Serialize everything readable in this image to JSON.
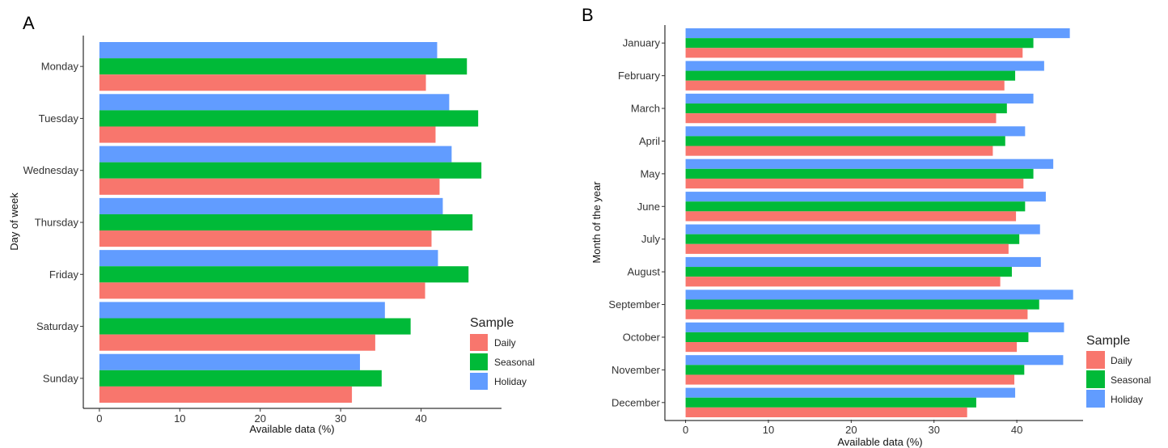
{
  "chart_data": [
    {
      "type": "bar",
      "orientation": "horizontal",
      "panel_label": "A",
      "categories": [
        "Monday",
        "Tuesday",
        "Wednesday",
        "Thursday",
        "Friday",
        "Saturday",
        "Sunday"
      ],
      "series": [
        {
          "name": "Daily",
          "color": "#F8766D",
          "values": [
            40.6,
            41.8,
            42.3,
            41.3,
            40.5,
            34.3,
            31.4
          ]
        },
        {
          "name": "Seasonal",
          "color": "#00BA38",
          "values": [
            45.7,
            47.1,
            47.5,
            46.4,
            45.9,
            38.7,
            35.1
          ]
        },
        {
          "name": "Holiday",
          "color": "#619CFF",
          "values": [
            42.0,
            43.5,
            43.8,
            42.7,
            42.1,
            35.5,
            32.4
          ]
        }
      ],
      "xlabel": "Available data (%)",
      "ylabel": "Day of week",
      "xlim": [
        -2,
        50
      ],
      "xticks": [
        "0",
        "10",
        "20",
        "30",
        "40"
      ],
      "grid": false,
      "legend": {
        "title": "Sample",
        "items": [
          "Daily",
          "Seasonal",
          "Holiday"
        ],
        "placement": "bottom-right"
      }
    },
    {
      "type": "bar",
      "orientation": "horizontal",
      "panel_label": "B",
      "categories": [
        "January",
        "February",
        "March",
        "April",
        "May",
        "June",
        "July",
        "August",
        "September",
        "October",
        "November",
        "December"
      ],
      "series": [
        {
          "name": "Daily",
          "color": "#F8766D",
          "values": [
            40.7,
            38.5,
            37.5,
            37.1,
            40.8,
            39.9,
            39.0,
            38.0,
            41.3,
            40.0,
            39.7,
            34.0
          ]
        },
        {
          "name": "Seasonal",
          "color": "#00BA38",
          "values": [
            42.0,
            39.8,
            38.8,
            38.6,
            42.0,
            41.0,
            40.3,
            39.4,
            42.7,
            41.4,
            40.9,
            35.1
          ]
        },
        {
          "name": "Holiday",
          "color": "#619CFF",
          "values": [
            46.4,
            43.3,
            42.0,
            41.0,
            44.4,
            43.5,
            42.8,
            42.9,
            46.8,
            45.7,
            45.6,
            39.8
          ]
        }
      ],
      "xlabel": "Available data (%)",
      "ylabel": "Month of the year",
      "xlim": [
        -2.5,
        48
      ],
      "xticks": [
        "0",
        "10",
        "20",
        "30",
        "40"
      ],
      "grid": false,
      "legend": {
        "title": "Sample",
        "items": [
          "Daily",
          "Seasonal",
          "Holiday"
        ],
        "placement": "bottom-right"
      }
    }
  ]
}
